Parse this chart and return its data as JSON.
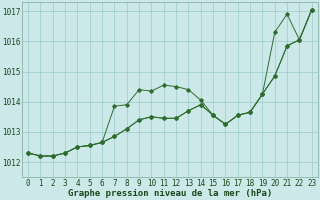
{
  "xlabel": "Graphe pression niveau de la mer (hPa)",
  "bg_color": "#cce8e8",
  "grid_color": "#99cccc",
  "line_color": "#2d6e2d",
  "x_ticks": [
    0,
    1,
    2,
    3,
    4,
    5,
    6,
    7,
    8,
    9,
    10,
    11,
    12,
    13,
    14,
    15,
    16,
    17,
    18,
    19,
    20,
    21,
    22,
    23
  ],
  "ylim": [
    1011.5,
    1017.3
  ],
  "yticks": [
    1012,
    1013,
    1014,
    1015,
    1016,
    1017
  ],
  "series": [
    [
      1012.3,
      1012.2,
      1012.2,
      1012.3,
      1012.5,
      1012.55,
      1012.65,
      1012.85,
      1013.1,
      1013.4,
      1013.5,
      1013.45,
      1013.45,
      1013.7,
      1013.9,
      1013.55,
      1013.25,
      1013.55,
      1013.65,
      1014.25,
      1014.85,
      1015.85,
      1016.05,
      1017.05
    ],
    [
      1012.3,
      1012.2,
      1012.2,
      1012.3,
      1012.5,
      1012.55,
      1012.65,
      1013.85,
      1013.9,
      1014.4,
      1014.35,
      1014.55,
      1014.5,
      1014.4,
      1014.05,
      1013.55,
      1013.25,
      1013.55,
      1013.65,
      1014.25,
      1014.85,
      1015.85,
      1016.05,
      1017.05
    ],
    [
      1012.3,
      1012.2,
      1012.2,
      1012.3,
      1012.5,
      1012.55,
      1012.65,
      1012.85,
      1013.1,
      1013.4,
      1013.5,
      1013.45,
      1013.45,
      1013.7,
      1013.9,
      1013.55,
      1013.25,
      1013.55,
      1013.65,
      1014.25,
      1016.3,
      1016.9,
      1016.05,
      1017.05
    ]
  ],
  "ylabel_ticks": [
    "1012",
    "1013",
    "1014",
    "1015",
    "1016",
    "1017"
  ],
  "tick_fontsize": 5.5,
  "xlabel_fontsize": 6.5,
  "figwidth": 3.2,
  "figheight": 2.0,
  "dpi": 100
}
